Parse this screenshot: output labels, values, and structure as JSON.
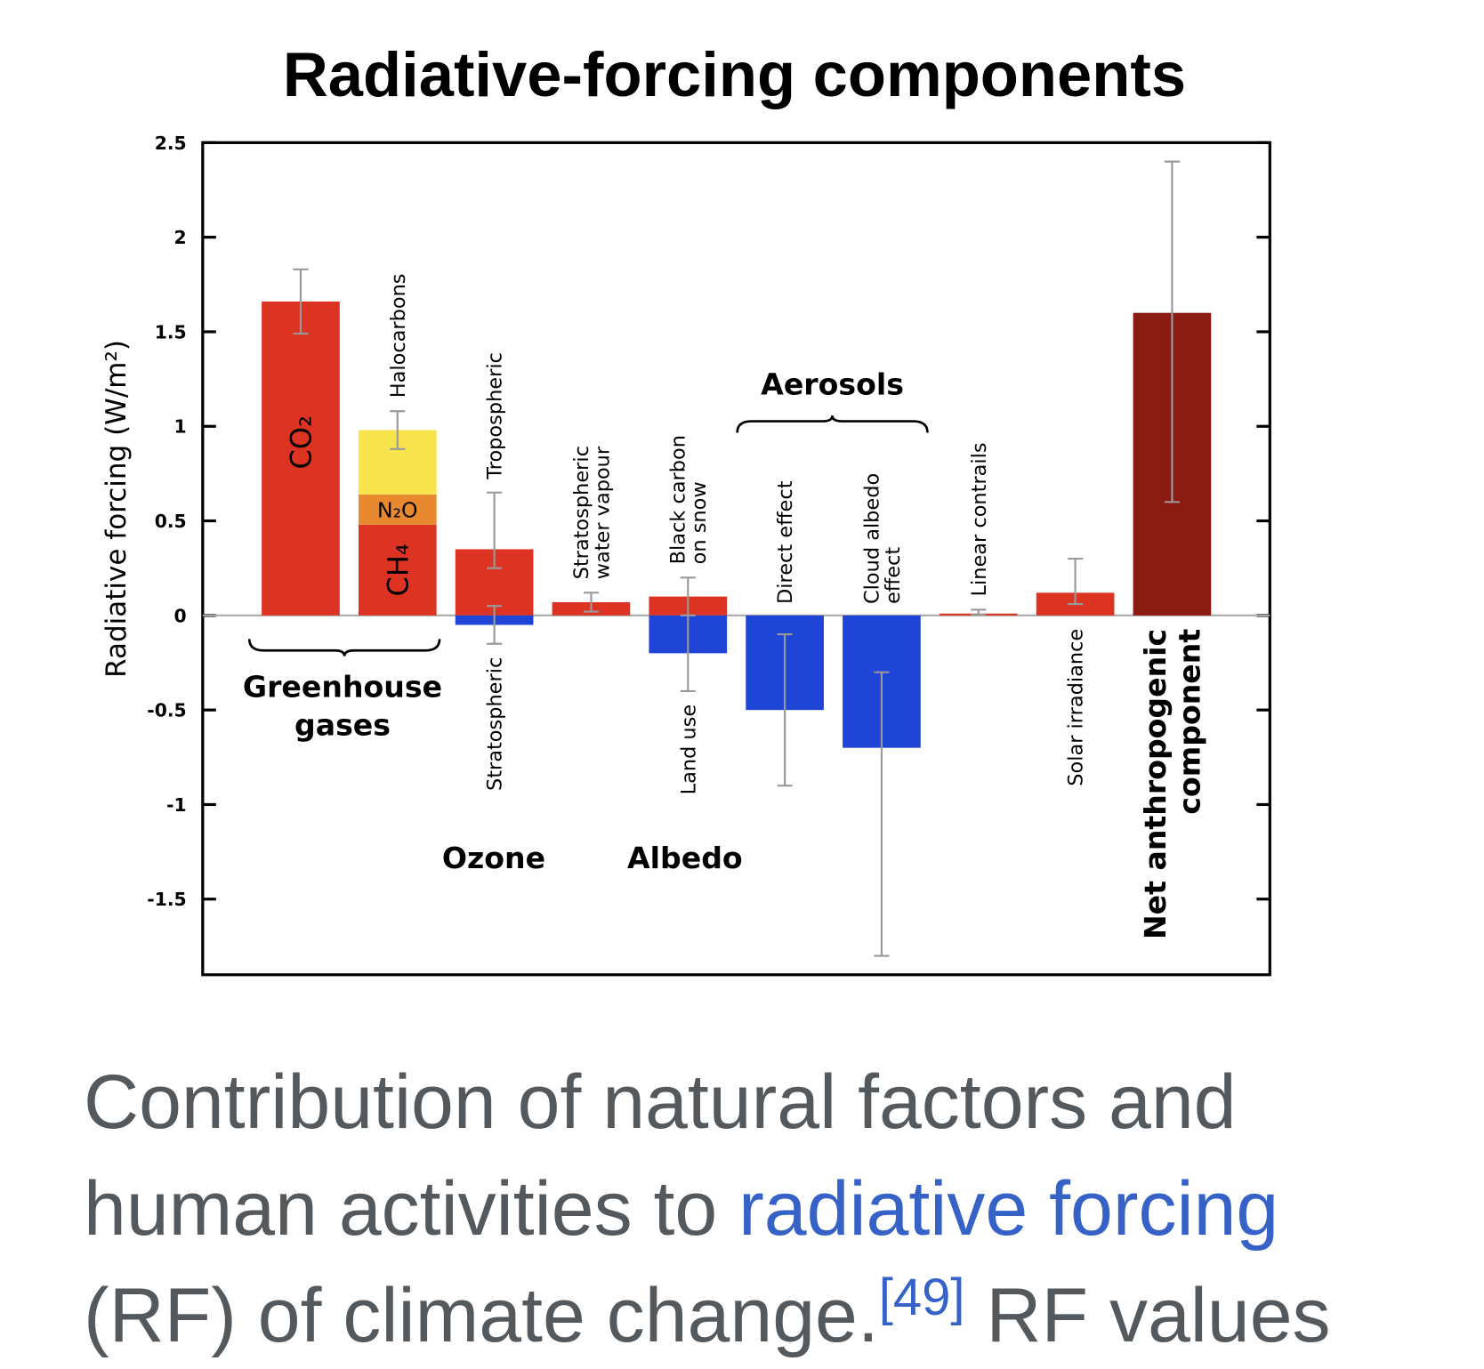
{
  "chart_data": {
    "type": "bar",
    "title": "Radiative-forcing components",
    "y_label": "Radiative forcing (W/m²)",
    "ylim": [
      -1.9,
      2.5
    ],
    "yticks": [
      -1.5,
      -1,
      -0.5,
      0,
      0.5,
      1,
      1.5,
      2,
      2.5
    ],
    "groups": [
      {
        "label": [
          "Greenhouse",
          "gases"
        ],
        "columns": [
          {
            "segments": [
              {
                "label": [
                  "CO₂"
                ],
                "value": 1.66,
                "color": "#dd3322",
                "range": [
                  1.49,
                  1.83
                ]
              }
            ]
          },
          {
            "segments": [
              {
                "label": [
                  "CH₄"
                ],
                "value": 0.48,
                "color": "#dd3322"
              },
              {
                "label": [
                  "N₂O"
                ],
                "value": 0.16,
                "color": "#e8892f"
              },
              {
                "label": [
                  "Halocarbons"
                ],
                "value": 0.34,
                "color": "#f7e34b",
                "range": [
                  0.88,
                  1.08
                ]
              }
            ]
          }
        ]
      },
      {
        "label": [
          "Ozone"
        ],
        "columns": [
          {
            "segments": [
              {
                "label": [
                  "Tropospheric"
                ],
                "value": 0.35,
                "color": "#dd3322",
                "range": [
                  0.25,
                  0.65
                ]
              },
              {
                "label": [
                  "Stratospheric"
                ],
                "value": -0.05,
                "color": "#1f45d6",
                "range": [
                  -0.15,
                  0.05
                ]
              }
            ]
          }
        ]
      },
      {
        "columns": [
          {
            "segments": [
              {
                "label": [
                  "Stratospheric",
                  "water vapour"
                ],
                "value": 0.07,
                "color": "#dd3322",
                "range": [
                  0.02,
                  0.12
                ]
              }
            ]
          }
        ]
      },
      {
        "label": [
          "Albedo"
        ],
        "columns": [
          {
            "segments": [
              {
                "label": [
                  "Black carbon",
                  "on snow"
                ],
                "value": 0.1,
                "color": "#dd3322",
                "range": [
                  0,
                  0.2
                ]
              },
              {
                "label": [
                  "Land use"
                ],
                "value": -0.2,
                "color": "#1f45d6",
                "range": [
                  -0.4,
                  0
                ]
              }
            ]
          }
        ]
      },
      {
        "label": [
          "Aerosols"
        ],
        "columns": [
          {
            "segments": [
              {
                "label": [
                  "Direct effect"
                ],
                "value": -0.5,
                "color": "#1f45d6",
                "range": [
                  -0.9,
                  -0.1
                ]
              }
            ]
          },
          {
            "segments": [
              {
                "label": [
                  "Cloud albedo",
                  "effect"
                ],
                "value": -0.7,
                "color": "#1f45d6",
                "range": [
                  -1.8,
                  -0.3
                ]
              }
            ]
          }
        ]
      },
      {
        "columns": [
          {
            "segments": [
              {
                "label": [
                  "Linear contrails"
                ],
                "value": 0.01,
                "color": "#dd3322",
                "range": [
                  0.003,
                  0.03
                ]
              }
            ]
          }
        ]
      },
      {
        "columns": [
          {
            "segments": [
              {
                "label": [
                  "Solar irradiance"
                ],
                "value": 0.12,
                "color": "#dd3322",
                "range": [
                  0.06,
                  0.3
                ]
              }
            ]
          }
        ]
      },
      {
        "columns": [
          {
            "segments": [
              {
                "label": [
                  "Net anthropogenic",
                  "component"
                ],
                "value": 1.6,
                "color": "#8b1a10",
                "range": [
                  0.6,
                  2.4
                ]
              }
            ]
          }
        ]
      }
    ]
  },
  "caption": {
    "line_1": "Contribution of natural factors and",
    "line_2": "human activities to",
    "link": "radiative forcing",
    "line_3": "(RF) of climate change.",
    "ref": "[49]",
    "line_4": "RF values"
  }
}
